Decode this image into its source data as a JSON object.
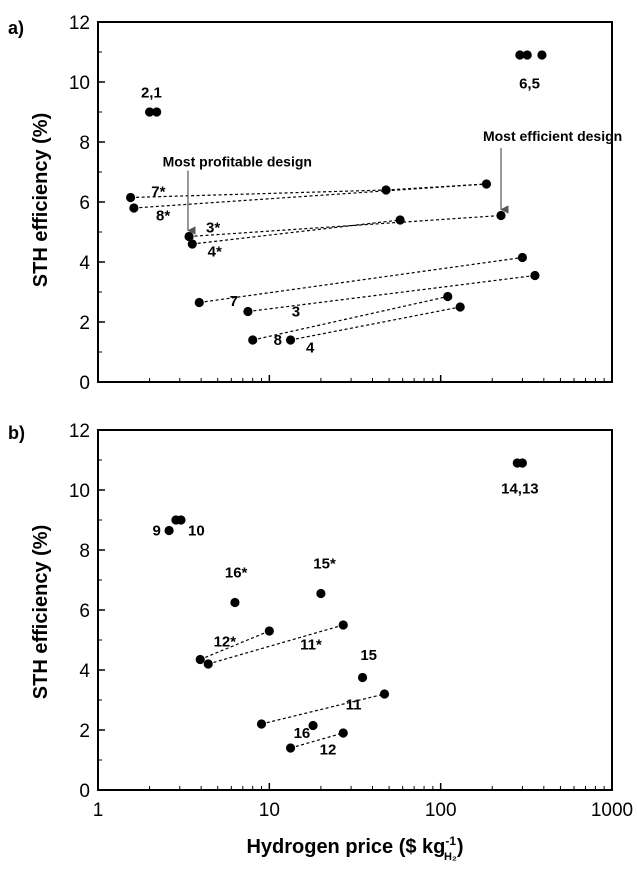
{
  "chart_data": [
    {
      "type": "scatter",
      "panel_label": "a)",
      "xscale": "log",
      "xlim": [
        1,
        1000
      ],
      "ylim": [
        0,
        12
      ],
      "ylabel": "STH efficiency (%)",
      "xlabel": "",
      "yticks": [
        "0",
        "2",
        "4",
        "6",
        "8",
        "10",
        "12"
      ],
      "points": [
        {
          "x": 2.0,
          "y": 9.0
        },
        {
          "x": 2.2,
          "y": 9.0
        },
        {
          "x": 290,
          "y": 10.9
        },
        {
          "x": 320,
          "y": 10.9
        },
        {
          "x": 390,
          "y": 10.9
        },
        {
          "x": 1.55,
          "y": 6.15
        },
        {
          "x": 1.62,
          "y": 5.8
        },
        {
          "x": 48,
          "y": 6.4
        },
        {
          "x": 185,
          "y": 6.6
        },
        {
          "x": 3.4,
          "y": 4.85
        },
        {
          "x": 3.55,
          "y": 4.6
        },
        {
          "x": 58,
          "y": 5.4
        },
        {
          "x": 225,
          "y": 5.55
        },
        {
          "x": 3.9,
          "y": 2.65
        },
        {
          "x": 300,
          "y": 4.15
        },
        {
          "x": 7.5,
          "y": 2.35
        },
        {
          "x": 355,
          "y": 3.55
        },
        {
          "x": 8.0,
          "y": 1.4
        },
        {
          "x": 110,
          "y": 2.85
        },
        {
          "x": 13.3,
          "y": 1.4
        },
        {
          "x": 130,
          "y": 2.5
        }
      ],
      "connectors": [
        {
          "from": [
            1.55,
            6.15
          ],
          "to": [
            48,
            6.4
          ]
        },
        {
          "from": [
            48,
            6.4
          ],
          "to": [
            185,
            6.6
          ]
        },
        {
          "from": [
            1.62,
            5.8
          ],
          "to": [
            185,
            6.6
          ]
        },
        {
          "from": [
            3.4,
            4.85
          ],
          "to": [
            225,
            5.55
          ]
        },
        {
          "from": [
            3.55,
            4.6
          ],
          "to": [
            58,
            5.4
          ]
        },
        {
          "from": [
            3.9,
            2.65
          ],
          "to": [
            300,
            4.15
          ]
        },
        {
          "from": [
            7.5,
            2.35
          ],
          "to": [
            355,
            3.55
          ]
        },
        {
          "from": [
            8.0,
            1.4
          ],
          "to": [
            110,
            2.85
          ]
        },
        {
          "from": [
            13.3,
            1.4
          ],
          "to": [
            130,
            2.5
          ]
        }
      ],
      "labels": [
        {
          "text": "2,1",
          "x": 2.05,
          "y": 9.65
        },
        {
          "text": "6,5",
          "x": 330,
          "y": 9.95
        },
        {
          "text": "7*",
          "x": 2.25,
          "y": 6.35
        },
        {
          "text": "8*",
          "x": 2.4,
          "y": 5.55
        },
        {
          "text": "3*",
          "x": 4.7,
          "y": 5.15
        },
        {
          "text": "4*",
          "x": 4.8,
          "y": 4.35
        },
        {
          "text": "7",
          "x": 6.2,
          "y": 2.7
        },
        {
          "text": "3",
          "x": 14.3,
          "y": 2.35
        },
        {
          "text": "8",
          "x": 11.2,
          "y": 1.4
        },
        {
          "text": "4",
          "x": 17.3,
          "y": 1.15
        }
      ],
      "annotations": [
        {
          "text": "Most profitable design",
          "x": 6.5,
          "y": 7.35,
          "arrow_x": 3.35,
          "arrow_from": 7.05,
          "arrow_to": 5.05
        },
        {
          "text": "Most efficient design",
          "x": 450,
          "y": 8.2,
          "arrow_x": 225,
          "arrow_from": 7.8,
          "arrow_to": 5.75
        }
      ]
    },
    {
      "type": "scatter",
      "panel_label": "b)",
      "xscale": "log",
      "xlim": [
        1,
        1000
      ],
      "ylim": [
        0,
        12
      ],
      "ylabel": "STH efficiency (%)",
      "xlabel_main": "Hydrogen price ($ kg",
      "xlabel_sup": "-1",
      "xlabel_sub": "H₂",
      "xlabel_close": ")",
      "yticks": [
        "0",
        "2",
        "4",
        "6",
        "8",
        "10",
        "12"
      ],
      "xticks": [
        {
          "value": 1,
          "label": "1"
        },
        {
          "value": 10,
          "label": "10"
        },
        {
          "value": 100,
          "label": "100"
        },
        {
          "value": 1000,
          "label": "1000"
        }
      ],
      "points": [
        {
          "x": 2.6,
          "y": 8.65
        },
        {
          "x": 2.85,
          "y": 9.0
        },
        {
          "x": 3.05,
          "y": 9.0
        },
        {
          "x": 280,
          "y": 10.9
        },
        {
          "x": 300,
          "y": 10.9
        },
        {
          "x": 6.3,
          "y": 6.25
        },
        {
          "x": 20,
          "y": 6.55
        },
        {
          "x": 3.95,
          "y": 4.35
        },
        {
          "x": 4.4,
          "y": 4.2
        },
        {
          "x": 10,
          "y": 5.3
        },
        {
          "x": 27,
          "y": 5.5
        },
        {
          "x": 35,
          "y": 3.75
        },
        {
          "x": 47,
          "y": 3.2
        },
        {
          "x": 9.0,
          "y": 2.2
        },
        {
          "x": 18,
          "y": 2.15
        },
        {
          "x": 13.3,
          "y": 1.4
        },
        {
          "x": 27,
          "y": 1.9
        }
      ],
      "connectors": [
        {
          "from": [
            3.95,
            4.35
          ],
          "to": [
            10,
            5.3
          ]
        },
        {
          "from": [
            4.4,
            4.2
          ],
          "to": [
            27,
            5.5
          ]
        },
        {
          "from": [
            9.0,
            2.2
          ],
          "to": [
            47,
            3.2
          ]
        },
        {
          "from": [
            13.3,
            1.4
          ],
          "to": [
            27,
            1.9
          ]
        }
      ],
      "labels": [
        {
          "text": "9",
          "x": 2.2,
          "y": 8.65
        },
        {
          "text": "10",
          "x": 3.75,
          "y": 8.65
        },
        {
          "text": "14,13",
          "x": 290,
          "y": 10.05
        },
        {
          "text": "16*",
          "x": 6.4,
          "y": 7.25
        },
        {
          "text": "15*",
          "x": 21,
          "y": 7.55
        },
        {
          "text": "12*",
          "x": 5.5,
          "y": 4.95
        },
        {
          "text": "11*",
          "x": 17.5,
          "y": 4.85
        },
        {
          "text": "15",
          "x": 38,
          "y": 4.5
        },
        {
          "text": "11",
          "x": 31,
          "y": 2.85
        },
        {
          "text": "16",
          "x": 15.5,
          "y": 1.9
        },
        {
          "text": "12",
          "x": 22,
          "y": 1.35
        }
      ]
    }
  ]
}
